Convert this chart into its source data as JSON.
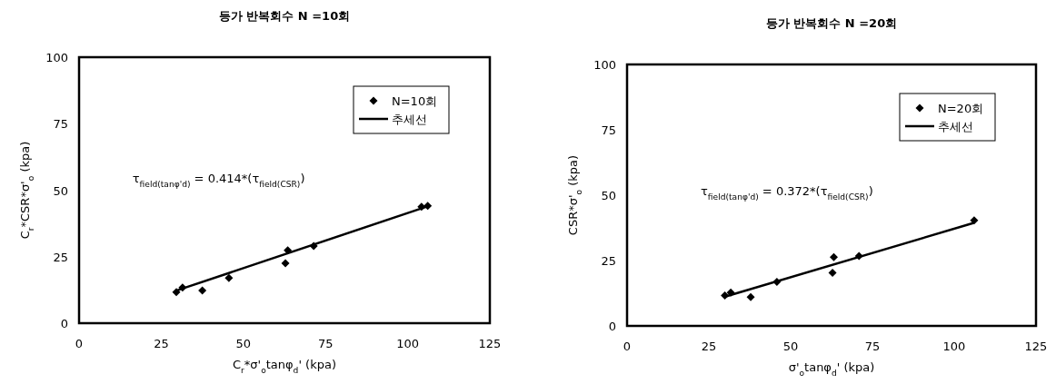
{
  "chart_data": [
    {
      "type": "scatter",
      "title": "등가 반복회수 N =10회",
      "xlabel": "C$_{r}$*σ'$_{o}$tanφ$_{d}$' (kpa)",
      "ylabel": "C$_{r}$*CSR*σ'$_{o}$ (kpa)",
      "xlim": [
        0,
        125
      ],
      "ylim": [
        0,
        100
      ],
      "xticks": [
        0,
        25,
        50,
        75,
        100,
        125
      ],
      "yticks": [
        0,
        25,
        50,
        75,
        100
      ],
      "grid": false,
      "legend": "top right",
      "marker": "diamond",
      "series": [
        {
          "name": "N=10회",
          "color": "#000000",
          "x": [
            29.6,
            31.5,
            37.5,
            45.6,
            62.8,
            63.5,
            71.4,
            104.2,
            106.1
          ],
          "values": [
            11.7,
            13.4,
            12.3,
            17.0,
            22.5,
            27.4,
            29.0,
            43.8,
            44.1
          ]
        },
        {
          "name": "추세선",
          "type": "line",
          "marker": "none",
          "color": "#000000",
          "x": [
            30,
            106
          ],
          "values": [
            12.4,
            43.9
          ]
        }
      ],
      "annotations": [
        "τ$_{field(tanφ'd)}$ = 0.414*(τ$_{field(CSR)}$)"
      ]
    },
    {
      "type": "scatter",
      "title": "등가 반복회수 N =20회",
      "xlabel": "σ'$_{o}$tanφ$_{d}$' (kpa)",
      "ylabel": "CSR*σ'$_{o}$ (kpa)",
      "xlim": [
        0,
        125
      ],
      "ylim": [
        0,
        100
      ],
      "xticks": [
        0,
        25,
        50,
        75,
        100,
        125
      ],
      "yticks": [
        0,
        25,
        50,
        75,
        100
      ],
      "grid": false,
      "legend": "top right",
      "marker": "diamond",
      "series": [
        {
          "name": "N=20회",
          "color": "#000000",
          "x": [
            29.9,
            31.7,
            37.8,
            45.8,
            62.8,
            63.2,
            70.9,
            106.1
          ],
          "values": [
            11.6,
            12.8,
            11.0,
            16.8,
            20.3,
            26.3,
            26.7,
            40.4
          ]
        },
        {
          "name": "추세선",
          "type": "line",
          "marker": "none",
          "color": "#000000",
          "x": [
            30,
            106
          ],
          "values": [
            11.2,
            39.4
          ]
        }
      ],
      "annotations": [
        "τ$_{field(tanφ'd)}$ = 0.372*(τ$_{field(CSR)}$)"
      ]
    }
  ]
}
